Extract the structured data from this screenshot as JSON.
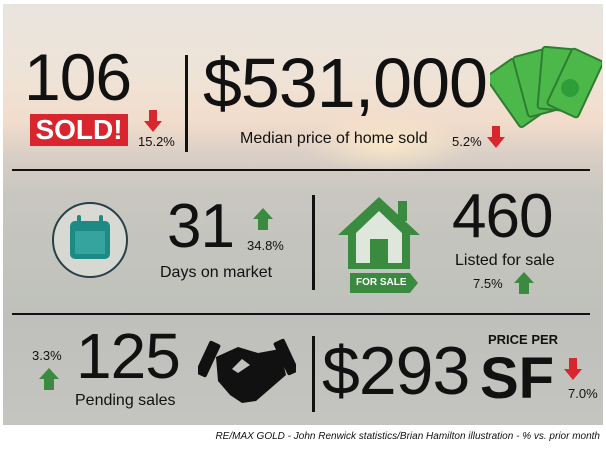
{
  "sold": {
    "value": "106",
    "badge": "SOLD!",
    "change": "15.2%",
    "direction": "down"
  },
  "median_price": {
    "value": "$531,000",
    "label": "Median price of home sold",
    "change": "5.2%",
    "direction": "down"
  },
  "days_on_market": {
    "value": "31",
    "label": "Days on market",
    "change": "34.8%",
    "direction": "up"
  },
  "listed": {
    "value": "460",
    "label": "Listed for sale",
    "change": "7.5%",
    "direction": "up",
    "sign": "FOR SALE"
  },
  "pending": {
    "value": "125",
    "label": "Pending sales",
    "change": "3.3%",
    "direction": "up"
  },
  "price_per_sf": {
    "value": "$293",
    "prefix": "PRICE PER",
    "unit": "SF",
    "change": "7.0%",
    "direction": "down"
  },
  "footer": "RE/MAX GOLD - John Renwick statistics/Brian Hamilton illustration - % vs. prior month",
  "colors": {
    "up": "#3a8a3f",
    "down": "#d9252e",
    "badge": "#d9252e",
    "teal": "#1e8a86"
  }
}
